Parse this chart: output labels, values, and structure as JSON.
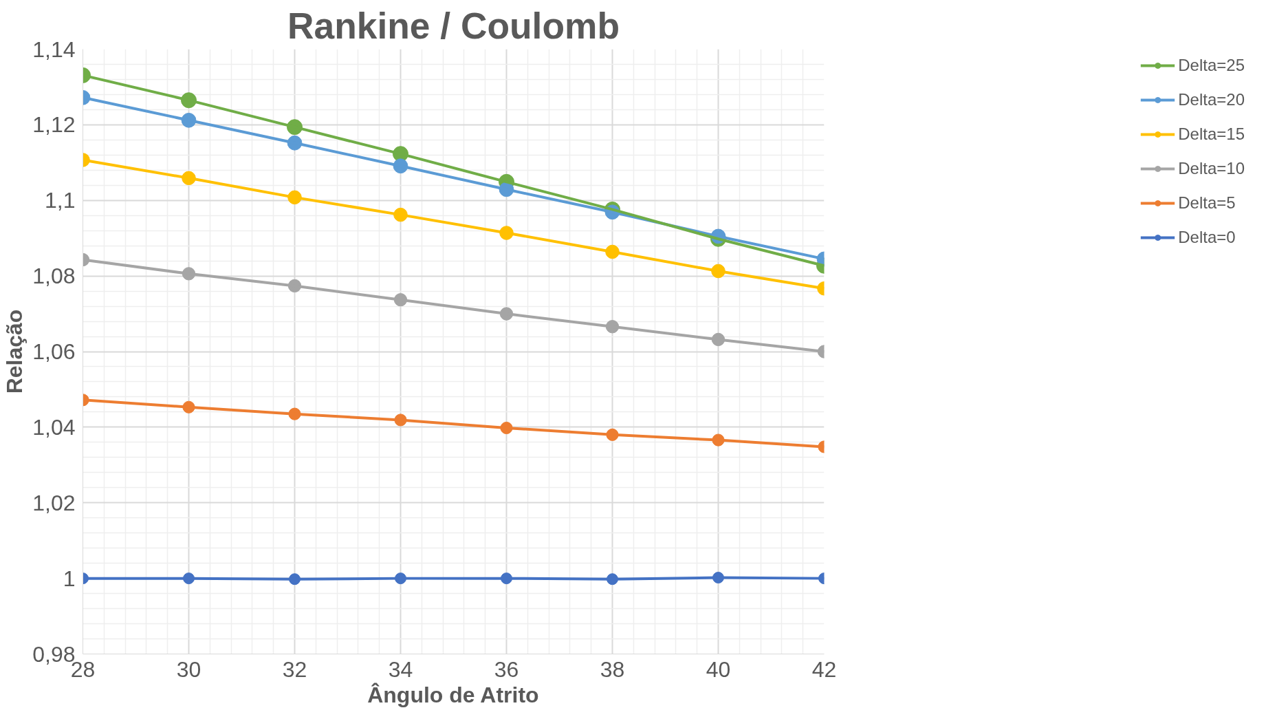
{
  "chart_data": {
    "type": "line",
    "title": "Rankine / Coulomb",
    "xlabel": "Ângulo de Atrito",
    "ylabel": "Relação",
    "x": [
      28,
      30,
      32,
      34,
      36,
      38,
      40,
      42
    ],
    "series": [
      {
        "name": "Delta=25",
        "color": "#70ad47",
        "values": [
          1.1331,
          1.1265,
          1.1194,
          1.1123,
          1.1049,
          1.0976,
          1.0898,
          1.0827
        ]
      },
      {
        "name": "Delta=20",
        "color": "#5b9bd5",
        "values": [
          1.1272,
          1.1212,
          1.1152,
          1.1091,
          1.1029,
          1.0969,
          1.0905,
          1.0845
        ]
      },
      {
        "name": "Delta=15",
        "color": "#ffc000",
        "values": [
          1.1107,
          1.1059,
          1.1008,
          1.0962,
          1.0914,
          1.0864,
          1.0813,
          1.0767
        ]
      },
      {
        "name": "Delta=10",
        "color": "#a5a5a5",
        "values": [
          1.0843,
          1.0806,
          1.0774,
          1.0737,
          1.07,
          1.0666,
          1.0632,
          1.06
        ]
      },
      {
        "name": "Delta=5",
        "color": "#ed7d31",
        "values": [
          1.0472,
          1.0453,
          1.0435,
          1.0419,
          1.0398,
          1.038,
          1.0366,
          1.0348
        ]
      },
      {
        "name": "Delta=0",
        "color": "#4472c4",
        "values": [
          1.0,
          1.0,
          0.9998,
          1.0,
          1.0,
          0.9998,
          1.0002,
          1.0
        ]
      }
    ],
    "xlim": [
      28,
      42
    ],
    "xticks": [
      28,
      30,
      32,
      34,
      36,
      38,
      40,
      42
    ],
    "ylim": [
      0.98,
      1.14
    ],
    "yticks": [
      {
        "value": 0.98,
        "label": "0,98"
      },
      1,
      {
        "value": 1.02,
        "label": "1,02"
      },
      {
        "value": 1.04,
        "label": "1,04"
      },
      {
        "value": 1.06,
        "label": "1,06"
      },
      {
        "value": 1.08,
        "label": "1,08"
      },
      {
        "value": 1.1,
        "label": "1,1"
      },
      {
        "value": 1.12,
        "label": "1,12"
      },
      {
        "value": 1.14,
        "label": "1,14"
      }
    ],
    "grid": true,
    "legend": "right",
    "marker": "circle",
    "line_style": "solid"
  }
}
